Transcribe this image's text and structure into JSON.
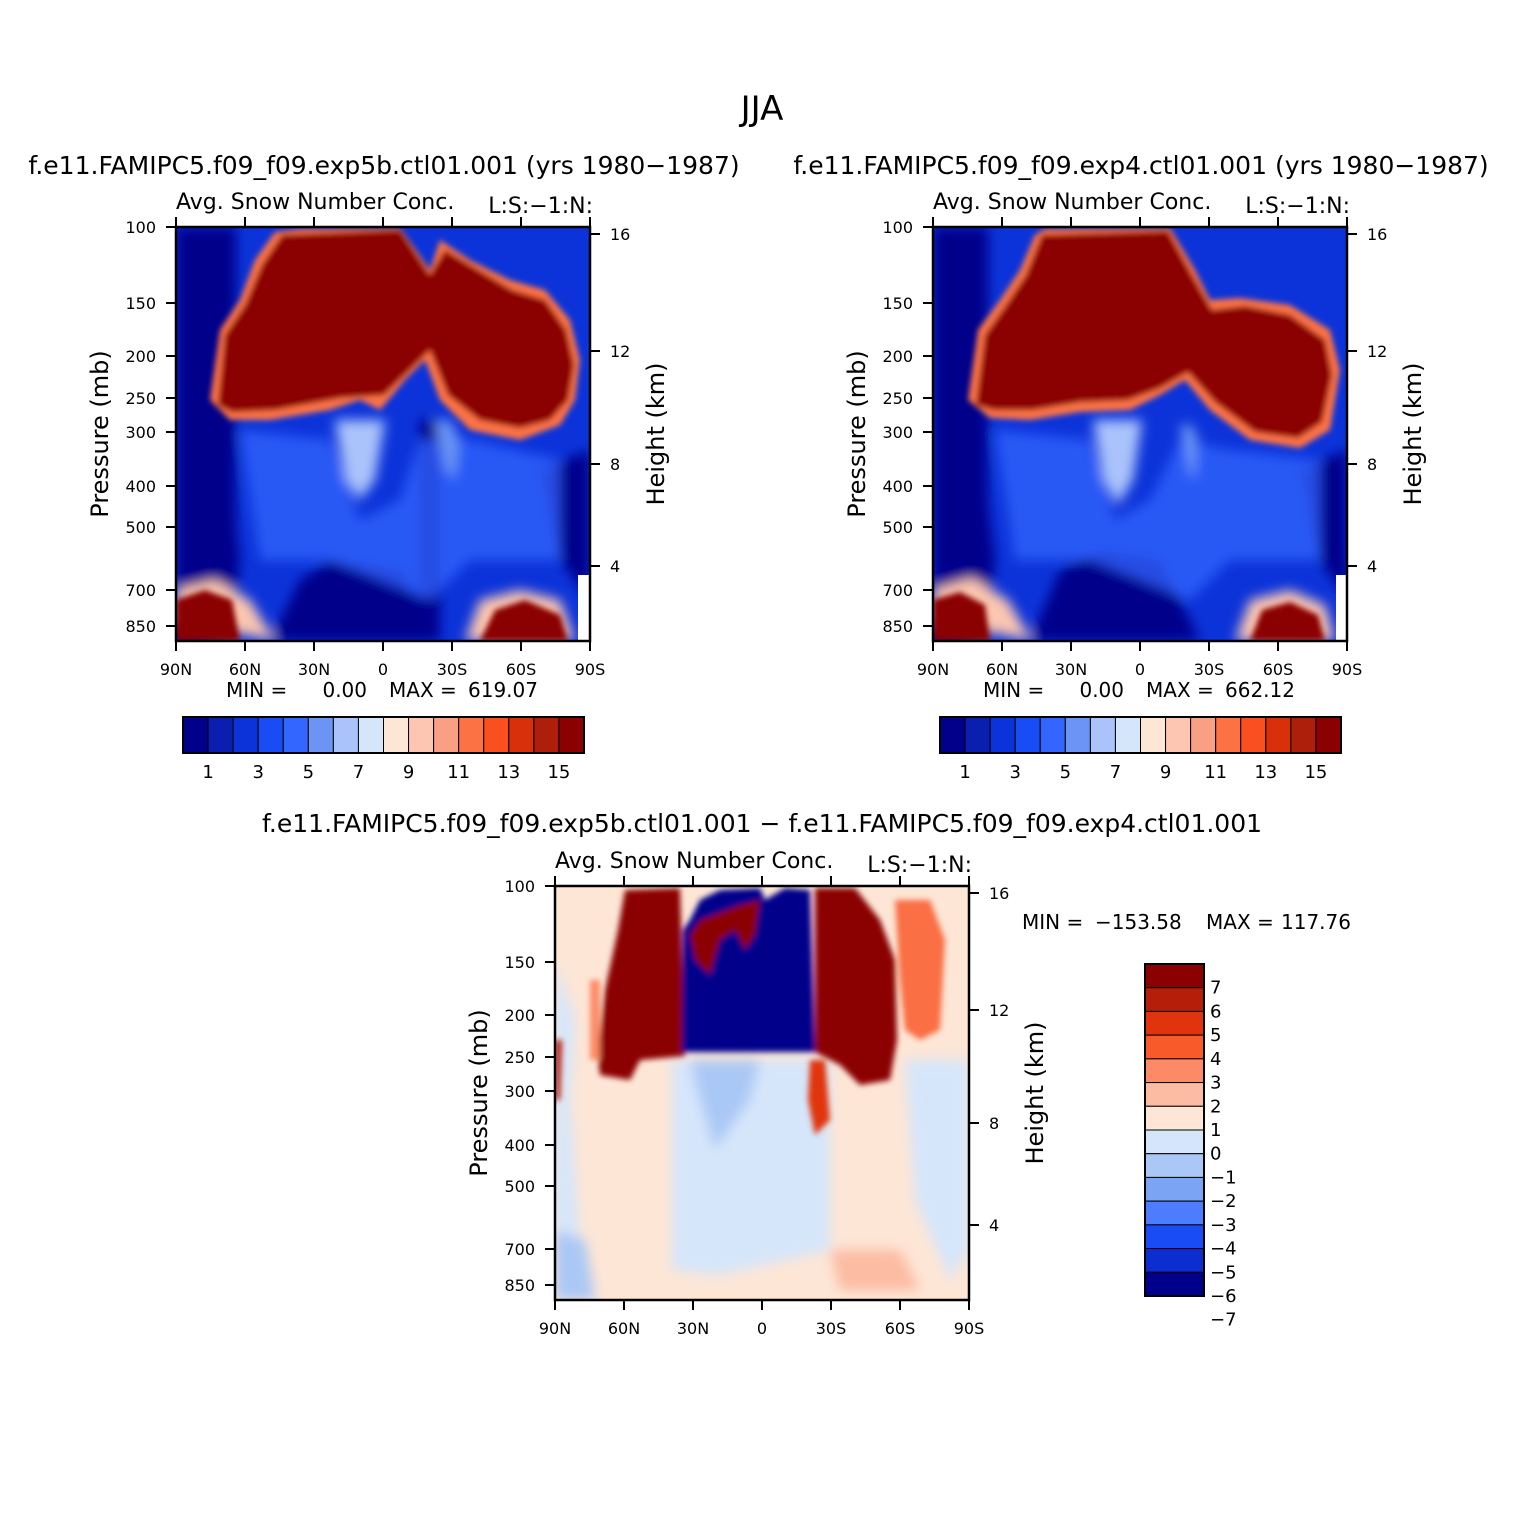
{
  "figure": {
    "suptitle": "JJA"
  },
  "chart_data": [
    {
      "type": "heatmap",
      "title": "f.e11.FAMIPC5.f09_f09.exp5b.ctl01.001 (yrs 1980−1987)",
      "subtitle_left": "Avg. Snow Number Conc.",
      "subtitle_right": "L:S:−1:N:",
      "ylabel": "Pressure (mb)",
      "ylabel_right": "Height (km)",
      "x_ticks": [
        "90N",
        "60N",
        "30N",
        "0",
        "30S",
        "60S",
        "90S"
      ],
      "y_ticks": [
        100,
        150,
        200,
        250,
        300,
        400,
        500,
        700,
        850
      ],
      "y_ticks_right": [
        16,
        12,
        8,
        4
      ],
      "ylim": [
        100,
        1000
      ],
      "xlim": [
        90,
        -90
      ],
      "min_label": "MIN =",
      "min_value": "0.00",
      "max_label": "MAX =",
      "max_value": "619.07",
      "colorbar": {
        "colors": [
          "#00008b",
          "#0a1fb0",
          "#0c33d9",
          "#1a4cf5",
          "#3366ff",
          "#6b94f5",
          "#aac3fb",
          "#d5e6fb",
          "#fde6d6",
          "#fcc6b0",
          "#f9a084",
          "#fc7244",
          "#fa4f1f",
          "#d9300c",
          "#ad1f0b",
          "#8b0000"
        ],
        "labels": [
          "1",
          "3",
          "5",
          "7",
          "9",
          "11",
          "13",
          "15"
        ]
      }
    },
    {
      "type": "heatmap",
      "title": "f.e11.FAMIPC5.f09_f09.exp4.ctl01.001 (yrs 1980−1987)",
      "subtitle_left": "Avg. Snow Number Conc.",
      "subtitle_right": "L:S:−1:N:",
      "ylabel": "Pressure (mb)",
      "ylabel_right": "Height (km)",
      "x_ticks": [
        "90N",
        "60N",
        "30N",
        "0",
        "30S",
        "60S",
        "90S"
      ],
      "y_ticks": [
        100,
        150,
        200,
        250,
        300,
        400,
        500,
        700,
        850
      ],
      "y_ticks_right": [
        16,
        12,
        8,
        4
      ],
      "ylim": [
        100,
        1000
      ],
      "xlim": [
        90,
        -90
      ],
      "min_label": "MIN =",
      "min_value": "0.00",
      "max_label": "MAX =",
      "max_value": "662.12",
      "colorbar": {
        "colors": [
          "#00008b",
          "#0a1fb0",
          "#0c33d9",
          "#1a4cf5",
          "#3366ff",
          "#6b94f5",
          "#aac3fb",
          "#d5e6fb",
          "#fde6d6",
          "#fcc6b0",
          "#f9a084",
          "#fc7244",
          "#fa4f1f",
          "#d9300c",
          "#ad1f0b",
          "#8b0000"
        ],
        "labels": [
          "1",
          "3",
          "5",
          "7",
          "9",
          "11",
          "13",
          "15"
        ]
      }
    },
    {
      "type": "heatmap",
      "title": "f.e11.FAMIPC5.f09_f09.exp5b.ctl01.001 − f.e11.FAMIPC5.f09_f09.exp4.ctl01.001",
      "subtitle_left": "Avg. Snow Number Conc.",
      "subtitle_right": "L:S:−1:N:",
      "ylabel": "Pressure (mb)",
      "ylabel_right": "Height (km)",
      "x_ticks": [
        "90N",
        "60N",
        "30N",
        "0",
        "30S",
        "60S",
        "90S"
      ],
      "y_ticks": [
        100,
        150,
        200,
        250,
        300,
        400,
        500,
        700,
        850
      ],
      "y_ticks_right": [
        16,
        12,
        8,
        4
      ],
      "ylim": [
        100,
        1000
      ],
      "xlim": [
        90,
        -90
      ],
      "min_label": "MIN =",
      "min_value": "−153.58",
      "max_label": "MAX =",
      "max_value": "117.76",
      "colorbar": {
        "colors": [
          "#8b0000",
          "#b51f0a",
          "#e0340e",
          "#f95a2a",
          "#fc8a66",
          "#fcbba3",
          "#fde6d6",
          "#d5e6fb",
          "#aac8f5",
          "#7ba4f5",
          "#4d7cff",
          "#1a4cf5",
          "#0c2ed0",
          "#00008b"
        ],
        "labels": [
          "7",
          "6",
          "5",
          "4",
          "3",
          "2",
          "1",
          "0",
          "−1",
          "−2",
          "−3",
          "−4",
          "−5",
          "−6",
          "−7"
        ]
      }
    }
  ]
}
